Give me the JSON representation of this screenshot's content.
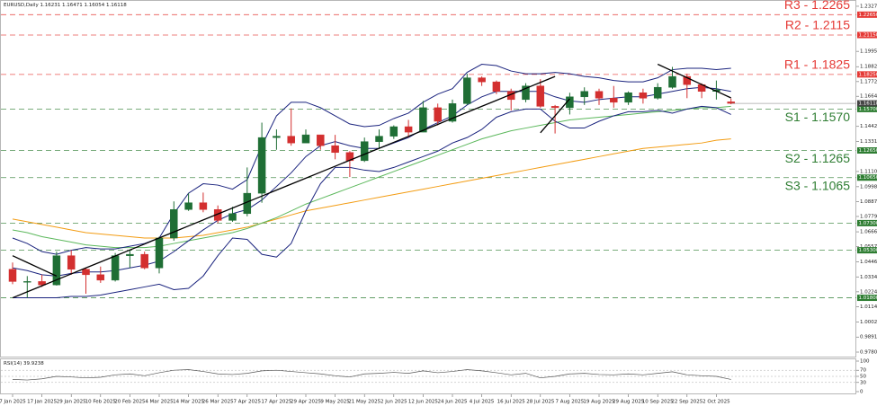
{
  "chart_data": {
    "type": "candlestick",
    "title": "EURUSD,Daily",
    "categories": [
      "7 Jan 2025",
      null,
      "17 Jan 2025",
      null,
      "29 Jan 2025",
      null,
      "10 Feb 2025",
      null,
      "20 Feb 2025",
      null,
      "4 Mar 2025",
      null,
      "14 Mar 2025",
      null,
      "26 Mar 2025",
      null,
      "7 Apr 2025",
      null,
      "17 Apr 2025",
      null,
      "29 Apr 2025",
      null,
      "9 May 2025",
      null,
      "21 May 2025",
      null,
      "2 Jun 2025",
      null,
      "12 Jun 2025",
      null,
      "24 Jun 2025",
      null,
      "4 Jul 2025",
      null,
      "16 Jul 2025",
      null,
      "28 Jul 2025",
      null,
      "7 Aug 2025",
      null,
      "19 Aug 2025",
      null,
      "29 Aug 2025",
      null,
      "10 Sep 2025",
      null,
      "22 Sep 2025",
      null,
      "2 Oct 2025",
      null
    ],
    "ohlc": {
      "open": [
        1.039,
        1.03,
        1.03,
        1.0275,
        1.049,
        1.039,
        1.035,
        1.031,
        1.049,
        1.05,
        1.04,
        1.062,
        1.083,
        1.088,
        1.083,
        1.075,
        1.08,
        1.095,
        1.136,
        1.137,
        1.132,
        1.138,
        1.13,
        1.125,
        1.119,
        1.133,
        1.137,
        1.144,
        1.14,
        1.158,
        1.148,
        1.161,
        1.18,
        1.177,
        1.17,
        1.164,
        1.174,
        1.159,
        1.158,
        1.166,
        1.17,
        1.165,
        1.162,
        1.169,
        1.165,
        1.173,
        1.181,
        1.175,
        1.17,
        1.16231
      ],
      "high": [
        1.044,
        1.034,
        1.035,
        1.052,
        1.053,
        1.04,
        1.041,
        1.051,
        1.053,
        1.052,
        1.063,
        1.089,
        1.095,
        1.0955,
        1.086,
        1.085,
        1.114,
        1.147,
        1.142,
        1.1575,
        1.142,
        1.138,
        1.138,
        1.126,
        1.136,
        1.142,
        1.145,
        1.149,
        1.163,
        1.161,
        1.164,
        1.183,
        1.181,
        1.178,
        1.172,
        1.176,
        1.179,
        1.16,
        1.169,
        1.173,
        1.172,
        1.174,
        1.17,
        1.172,
        1.176,
        1.188,
        1.183,
        1.176,
        1.178,
        1.16471
      ],
      "low": [
        1.028,
        1.018,
        1.026,
        1.027,
        1.035,
        1.021,
        1.029,
        1.03,
        1.04,
        1.039,
        1.036,
        1.06,
        1.082,
        1.081,
        1.073,
        1.074,
        1.078,
        1.088,
        1.127,
        1.13,
        1.132,
        1.127,
        1.12,
        1.107,
        1.118,
        1.128,
        1.135,
        1.136,
        1.14,
        1.145,
        1.147,
        1.16,
        1.174,
        1.168,
        1.156,
        1.162,
        1.158,
        1.139,
        1.153,
        1.16,
        1.16,
        1.158,
        1.16,
        1.161,
        1.164,
        1.172,
        1.165,
        1.165,
        1.164,
        1.16054
      ],
      "close": [
        1.03,
        1.03,
        1.0275,
        1.049,
        1.039,
        1.035,
        1.031,
        1.049,
        1.05,
        1.04,
        1.062,
        1.083,
        1.088,
        1.083,
        1.075,
        1.08,
        1.095,
        1.136,
        1.137,
        1.132,
        1.138,
        1.13,
        1.125,
        1.119,
        1.133,
        1.137,
        1.144,
        1.14,
        1.158,
        1.148,
        1.161,
        1.18,
        1.177,
        1.17,
        1.164,
        1.174,
        1.159,
        1.158,
        1.166,
        1.17,
        1.165,
        1.162,
        1.169,
        1.165,
        1.173,
        1.181,
        1.175,
        1.17,
        1.1712,
        1.16118
      ],
      "up_color": "#1f6e35",
      "down_color": "#d32f2f"
    },
    "indicators": [
      {
        "color": "#f39c12",
        "values": [
          1.076,
          1.074,
          1.072,
          1.07,
          1.068,
          1.066,
          1.065,
          1.064,
          1.063,
          1.062,
          1.062,
          1.062,
          1.063,
          1.064,
          1.066,
          1.068,
          1.07,
          1.073,
          1.076,
          1.079,
          1.082,
          1.084,
          1.086,
          1.088,
          1.09,
          1.092,
          1.094,
          1.096,
          1.098,
          1.1,
          1.102,
          1.104,
          1.106,
          1.108,
          1.11,
          1.112,
          1.114,
          1.116,
          1.118,
          1.12,
          1.122,
          1.124,
          1.126,
          1.128,
          1.129,
          1.13,
          1.131,
          1.132,
          1.134,
          1.135
        ]
      },
      {
        "color": "#5cb85c",
        "values": [
          1.068,
          1.066,
          1.063,
          1.061,
          1.059,
          1.057,
          1.056,
          1.055,
          1.055,
          1.055,
          1.056,
          1.058,
          1.06,
          1.062,
          1.064,
          1.066,
          1.069,
          1.073,
          1.077,
          1.082,
          1.087,
          1.091,
          1.095,
          1.099,
          1.103,
          1.107,
          1.111,
          1.115,
          1.119,
          1.123,
          1.127,
          1.131,
          1.135,
          1.138,
          1.141,
          1.143,
          1.145,
          1.147,
          1.149,
          1.15,
          1.151,
          1.152,
          1.153,
          1.154,
          1.155,
          1.156,
          1.157,
          1.158,
          1.158,
          1.159
        ]
      },
      {
        "color": "#1a237e",
        "values": [
          1.062,
          1.058,
          1.052,
          1.05,
          1.053,
          1.055,
          1.054,
          1.054,
          1.056,
          1.058,
          1.062,
          1.08,
          1.095,
          1.102,
          1.101,
          1.098,
          1.105,
          1.13,
          1.152,
          1.162,
          1.162,
          1.158,
          1.152,
          1.146,
          1.144,
          1.145,
          1.15,
          1.154,
          1.162,
          1.168,
          1.172,
          1.184,
          1.19,
          1.189,
          1.185,
          1.183,
          1.183,
          1.184,
          1.183,
          1.181,
          1.18,
          1.178,
          1.177,
          1.177,
          1.18,
          1.186,
          1.187,
          1.187,
          1.186,
          1.187
        ]
      },
      {
        "color": "#1a237e",
        "values": [
          1.04,
          1.038,
          1.035,
          1.034,
          1.036,
          1.037,
          1.037,
          1.038,
          1.04,
          1.042,
          1.045,
          1.052,
          1.06,
          1.068,
          1.075,
          1.08,
          1.083,
          1.09,
          1.1,
          1.11,
          1.122,
          1.13,
          1.133,
          1.13,
          1.128,
          1.128,
          1.132,
          1.136,
          1.142,
          1.147,
          1.152,
          1.16,
          1.166,
          1.17,
          1.17,
          1.17,
          1.17,
          1.166,
          1.163,
          1.162,
          1.164,
          1.165,
          1.166,
          1.166,
          1.168,
          1.17,
          1.172,
          1.173,
          1.172,
          1.17
        ]
      },
      {
        "color": "#1a237e",
        "values": [
          1.018,
          1.018,
          1.018,
          1.018,
          1.019,
          1.019,
          1.02,
          1.022,
          1.024,
          1.026,
          1.028,
          1.024,
          1.025,
          1.034,
          1.049,
          1.062,
          1.061,
          1.05,
          1.048,
          1.058,
          1.082,
          1.102,
          1.114,
          1.114,
          1.112,
          1.111,
          1.114,
          1.118,
          1.122,
          1.126,
          1.132,
          1.136,
          1.142,
          1.151,
          1.155,
          1.157,
          1.157,
          1.148,
          1.143,
          1.143,
          1.148,
          1.152,
          1.155,
          1.155,
          1.156,
          1.154,
          1.157,
          1.159,
          1.158,
          1.153
        ]
      }
    ],
    "trendlines": [
      {
        "color": "#000000",
        "values": [
          1.018,
          1.0224,
          1.0268,
          1.0312,
          1.0356,
          1.04,
          1.0444,
          1.0488,
          1.0532,
          1.0576,
          1.0621,
          1.0665,
          1.0709,
          1.0753,
          1.0797,
          1.0841,
          1.0885,
          1.0929,
          1.0973,
          1.1017,
          1.1061,
          1.1105,
          1.1149,
          1.1193,
          1.1237,
          1.1281,
          1.1325,
          1.1369,
          1.1413,
          1.1457,
          1.1502,
          1.1546,
          1.159,
          1.1634,
          1.1678,
          1.1722,
          1.1766,
          1.181,
          null,
          null,
          null,
          null,
          null,
          null,
          null,
          null,
          null,
          null,
          null,
          null
        ]
      },
      {
        "color": "#000000",
        "values": [
          1.049,
          1.044,
          1.039,
          1.034,
          null,
          null,
          null,
          null,
          null,
          null,
          null,
          null,
          null,
          null,
          null,
          null,
          null,
          null,
          null,
          null,
          null,
          null,
          null,
          null,
          null,
          null,
          null,
          null,
          null,
          null,
          null,
          null,
          null,
          null,
          null,
          null,
          null,
          null,
          null,
          null,
          null,
          null,
          null,
          null,
          null,
          null,
          null,
          null,
          null,
          null
        ]
      },
      {
        "color": "#000000",
        "values": [
          null,
          null,
          null,
          null,
          null,
          null,
          null,
          null,
          null,
          null,
          null,
          null,
          null,
          null,
          null,
          null,
          null,
          null,
          null,
          null,
          null,
          null,
          null,
          null,
          null,
          null,
          null,
          null,
          null,
          null,
          null,
          null,
          null,
          null,
          null,
          null,
          1.1395,
          1.152,
          1.1646,
          null,
          null,
          null,
          null,
          null,
          null,
          null,
          null,
          null,
          null,
          null
        ]
      },
      {
        "color": "#000000",
        "values": [
          null,
          null,
          null,
          null,
          null,
          null,
          null,
          null,
          null,
          null,
          null,
          null,
          null,
          null,
          null,
          null,
          null,
          null,
          null,
          null,
          null,
          null,
          null,
          null,
          null,
          null,
          null,
          null,
          null,
          null,
          null,
          null,
          null,
          null,
          null,
          null,
          null,
          null,
          null,
          null,
          null,
          null,
          null,
          null,
          1.19,
          1.185,
          1.1801,
          1.1751,
          1.1702,
          1.1652
        ]
      }
    ],
    "levels": [
      {
        "label": "R3 - 1.2265",
        "value": 1.2265,
        "price_label": "1.22650",
        "color": "#e53935",
        "label_side": "above"
      },
      {
        "label": "R2 - 1.2115",
        "value": 1.2115,
        "price_label": "1.21150",
        "color": "#e53935",
        "label_side": "above"
      },
      {
        "label": "R1 - 1.1825",
        "value": 1.1825,
        "price_label": "1.18250",
        "color": "#e53935",
        "label_side": "above"
      },
      {
        "label": "S1 - 1.1570",
        "value": 1.157,
        "price_label": "1.15700",
        "color": "#2e7d32",
        "label_side": "below"
      },
      {
        "label": "S2 - 1.1265",
        "value": 1.1265,
        "price_label": "1.12650",
        "color": "#2e7d32",
        "label_side": "below"
      },
      {
        "label": "S3 - 1.1065",
        "value": 1.1065,
        "price_label": "1.10650",
        "color": "#2e7d32",
        "label_side": "below"
      },
      {
        "value": 1.073,
        "price_label": "1.07300",
        "color": "#2e7d32"
      },
      {
        "value": 1.053,
        "price_label": "1.05300",
        "color": "#2e7d32"
      },
      {
        "value": 1.018,
        "price_label": "1.01800",
        "color": "#2e7d32"
      }
    ],
    "ylim": [
      0.9747,
      1.2373
    ],
    "yticks": [
      {
        "value": 1.2327,
        "label": "1.23270"
      },
      {
        "value": 1.1995,
        "label": "1.19950"
      },
      {
        "value": 1.1882,
        "label": "1.18820"
      },
      {
        "value": 1.1772,
        "label": "1.17720"
      },
      {
        "value": 1.1664,
        "label": "1.16640"
      },
      {
        "value": 1.1442,
        "label": "1.14420"
      },
      {
        "value": 1.1331,
        "label": "1.13310"
      },
      {
        "value": 1.111,
        "label": "1.11100"
      },
      {
        "value": 1.0998,
        "label": "1.09980"
      },
      {
        "value": 1.0887,
        "label": "1.08870"
      },
      {
        "value": 1.0779,
        "label": "1.07790"
      },
      {
        "value": 1.0666,
        "label": "1.06660"
      },
      {
        "value": 1.0557,
        "label": "1.05570"
      },
      {
        "value": 1.0446,
        "label": "1.04460"
      },
      {
        "value": 1.0334,
        "label": "1.03340"
      },
      {
        "value": 1.0224,
        "label": "1.02240"
      },
      {
        "value": 1.0114,
        "label": "1.01140"
      },
      {
        "value": 1.0002,
        "label": "1.00020"
      },
      {
        "value": 0.9891,
        "label": "0.98910"
      },
      {
        "value": 0.978,
        "label": "0.97800"
      }
    ],
    "grid": false,
    "rsi": {
      "title": "RSI(14)",
      "color": "#555555",
      "values": [
        40,
        38,
        42,
        50,
        48,
        45,
        47,
        55,
        58,
        52,
        62,
        70,
        72,
        66,
        58,
        56,
        60,
        68,
        70,
        66,
        62,
        58,
        52,
        48,
        58,
        60,
        63,
        60,
        68,
        62,
        66,
        72,
        68,
        62,
        55,
        60,
        45,
        50,
        58,
        60,
        56,
        55,
        58,
        55,
        60,
        65,
        55,
        52,
        50,
        39.9238
      ],
      "ylim": [
        0,
        100
      ],
      "yticks": [
        100,
        70,
        50,
        30,
        0
      ]
    }
  }
}
